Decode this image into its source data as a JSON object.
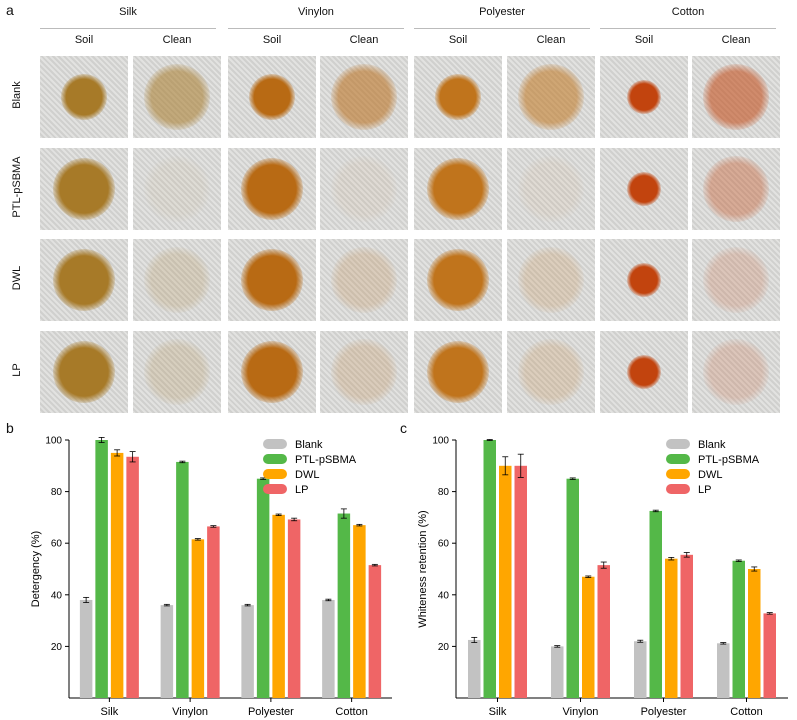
{
  "panel_a": {
    "label": "a",
    "fabrics": [
      "Silk",
      "Vinylon",
      "Polyester",
      "Cotton"
    ],
    "sub_columns": [
      "Soil",
      "Clean"
    ],
    "rows": [
      "Blank",
      "PTL-pSBMA",
      "DWL",
      "LP"
    ],
    "colors": {
      "fabric_bg": "#d8d8d6",
      "stain_silk": "#a77a28",
      "stain_vinylon": "#b86a14",
      "stain_polyester": "#c0741c",
      "stain_cotton": "#c2440e"
    }
  },
  "chart_data": [
    {
      "type": "bar",
      "panel_label": "b",
      "ylabel": "Detergency (%)",
      "xlabel": "",
      "categories": [
        "Silk",
        "Vinylon",
        "Polyester",
        "Cotton"
      ],
      "ylim": [
        0,
        100
      ],
      "yticks": [
        20,
        40,
        60,
        80,
        100
      ],
      "legend_position": "top-right",
      "series": [
        {
          "name": "Blank",
          "color": "#c2c2c2",
          "values": [
            38,
            36,
            36,
            38
          ],
          "errors": [
            1,
            0.3,
            0.3,
            0.3
          ]
        },
        {
          "name": "PTL-pSBMA",
          "color": "#54b848",
          "values": [
            100,
            91.5,
            85,
            71.5
          ],
          "errors": [
            1,
            0.3,
            0.3,
            1.8
          ]
        },
        {
          "name": "DWL",
          "color": "#ffa600",
          "values": [
            95,
            61.5,
            71,
            67
          ],
          "errors": [
            1.2,
            0.3,
            0.3,
            0.3
          ]
        },
        {
          "name": "LP",
          "color": "#ef6566",
          "values": [
            93.5,
            66.5,
            69.2,
            51.5
          ],
          "errors": [
            2,
            0.3,
            0.5,
            0.3
          ]
        }
      ]
    },
    {
      "type": "bar",
      "panel_label": "c",
      "ylabel": "Whiteness retention (%)",
      "xlabel": "",
      "categories": [
        "Silk",
        "Vinylon",
        "Polyester",
        "Cotton"
      ],
      "ylim": [
        0,
        100
      ],
      "yticks": [
        20,
        40,
        60,
        80,
        100
      ],
      "legend_position": "top-right",
      "series": [
        {
          "name": "Blank",
          "color": "#c2c2c2",
          "values": [
            22.5,
            20,
            22,
            21.2
          ],
          "errors": [
            1,
            0.3,
            0.4,
            0.3
          ]
        },
        {
          "name": "PTL-pSBMA",
          "color": "#54b848",
          "values": [
            100,
            85,
            72.5,
            53.2
          ],
          "errors": [
            0.2,
            0.3,
            0.3,
            0.3
          ]
        },
        {
          "name": "DWL",
          "color": "#ffa600",
          "values": [
            90,
            47,
            54,
            50
          ],
          "errors": [
            3.5,
            0.3,
            0.5,
            0.8
          ]
        },
        {
          "name": "LP",
          "color": "#ef6566",
          "values": [
            90,
            51.5,
            55.5,
            32.8
          ],
          "errors": [
            4.5,
            1.2,
            0.9,
            0.3
          ]
        }
      ]
    }
  ]
}
